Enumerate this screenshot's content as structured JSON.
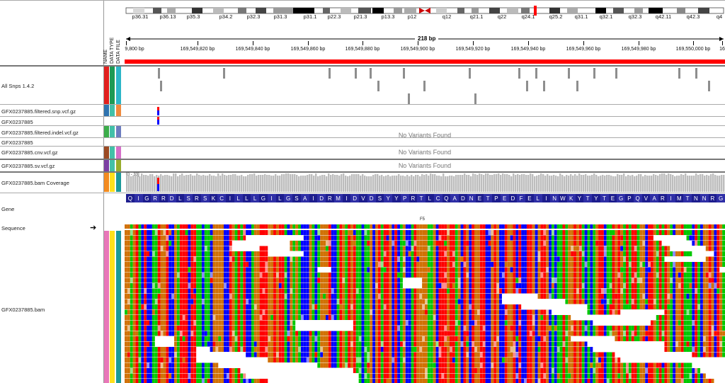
{
  "ideogram": {
    "bands": [
      "p36.31",
      "p36.13",
      "p35.3",
      "p34.2",
      "p32.3",
      "p31.3",
      "p31.1",
      "p22.3",
      "p21.3",
      "p13.3",
      "p12",
      "q12",
      "q21.1",
      "q22",
      "q24.1",
      "q25.2",
      "q31.1",
      "q32.1",
      "q32.3",
      "q42.11",
      "q42.3",
      "q4"
    ]
  },
  "ruler": {
    "span_label": "218 bp",
    "ticks": [
      "9,800 bp",
      "169,549,820 bp",
      "169,549,840 bp",
      "169,549,860 bp",
      "169,549,880 bp",
      "169,549,900 bp",
      "169,549,920 bp",
      "169,549,940 bp",
      "169,549,960 bp",
      "169,549,980 bp",
      "169,550,000 bp",
      "16"
    ]
  },
  "attribute_headers": [
    "NAME",
    "DATA TYPE",
    "DATA FILE"
  ],
  "tracks": {
    "all_snps": "All Snps 1.4.2",
    "snp_vcf": "GFX0237885.filtered.snp.vcf.gz",
    "snp_sample": "GFX0237885",
    "indel_vcf": "GFX0237885.filtered.indel.vcf.gz",
    "indel_sample": "GFX0237885",
    "cnv_vcf": "GFX0237885.cnv.vcf.gz",
    "sv_vcf": "GFX0237885.sv.vcf.gz",
    "coverage": "GFX0237885.bam Coverage",
    "gene": "Gene",
    "sequence": "Sequence",
    "bam": "GFX0237885.bam"
  },
  "no_variants": "No Variants Found",
  "coverage_scale": "[0 - 33]",
  "gene_strand_marker": "F5",
  "amino_acids": [
    "Q",
    "I",
    "G",
    "R",
    "R",
    "D",
    "L",
    "S",
    "R",
    "S",
    "K",
    "C",
    "I",
    "L",
    "L",
    "L",
    "G",
    "I",
    "L",
    "G",
    "S",
    "A",
    "I",
    "D",
    "R",
    "M",
    "I",
    "D",
    "V",
    "D",
    "S",
    "Y",
    "Y",
    "P",
    "R",
    "T",
    "L",
    "C",
    "Q",
    "A",
    "D",
    "N",
    "E",
    "T",
    "P",
    "E",
    "D",
    "F",
    "E",
    "L",
    "I",
    "N",
    "W",
    "K",
    "Y",
    "T",
    "Y",
    "T",
    "E",
    "G",
    "P",
    "Q",
    "V",
    "A",
    "R",
    "I",
    "M",
    "T",
    "N",
    "N",
    "R",
    "G"
  ],
  "colors": {
    "A": "#00c800",
    "C": "#0000ff",
    "G": "#d17105",
    "T": "#ff0000",
    "gene": "#1d1d8e",
    "snp": "#8e8e8e",
    "ruler_bar": "#ff0000"
  }
}
